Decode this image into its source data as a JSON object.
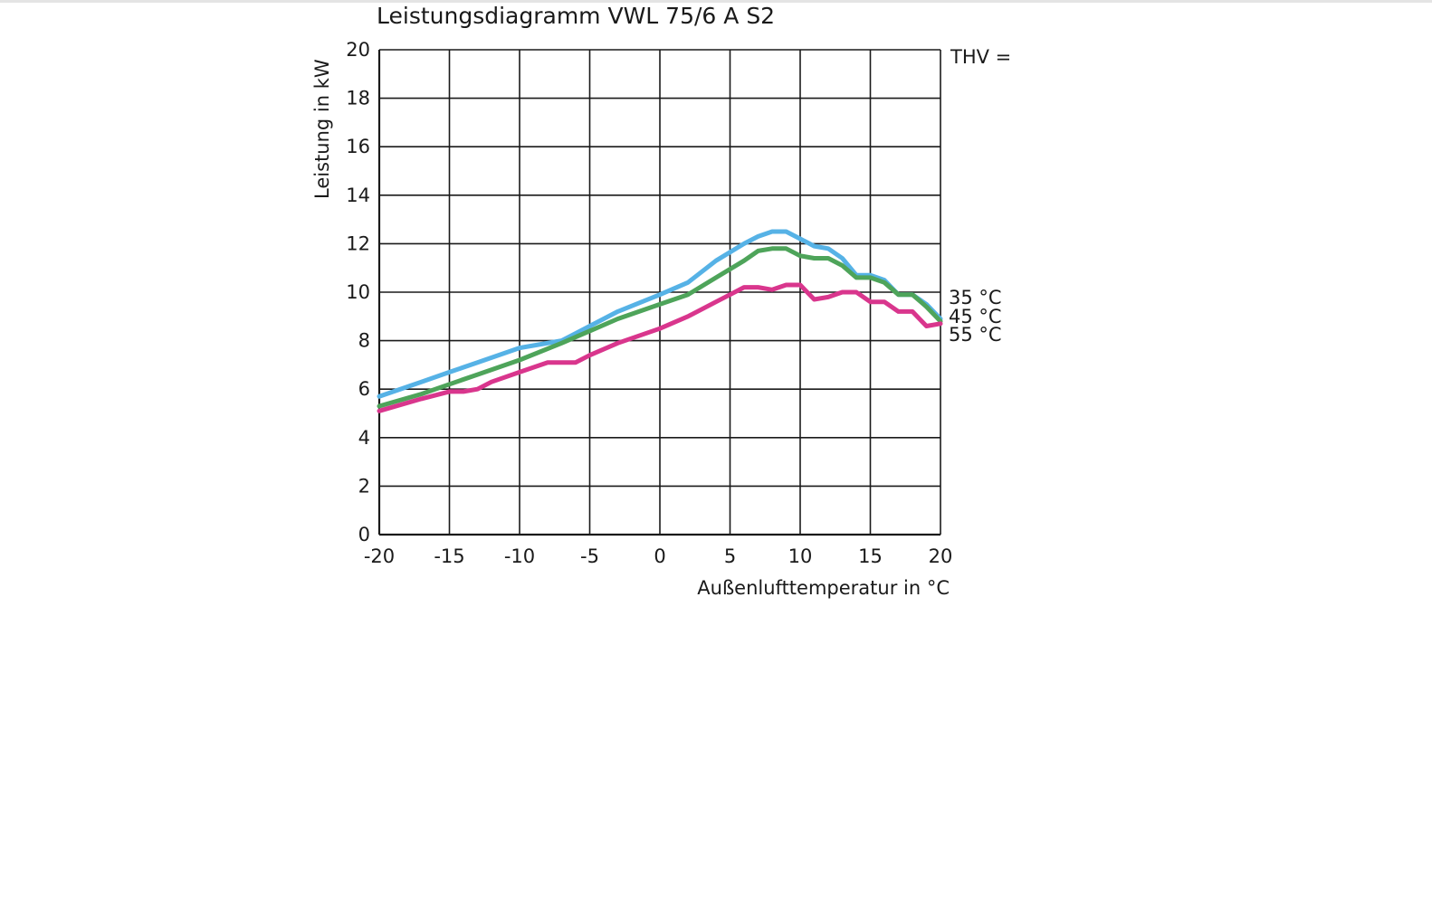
{
  "chart_data": {
    "type": "line",
    "title": "Leistungsdiagramm VWL 75/6 A S2",
    "xlabel": "Außenlufttemperatur  in °C",
    "ylabel": "Leistung in kW",
    "legend_title": "THV =",
    "xlim": [
      -20,
      20
    ],
    "ylim": [
      0,
      20
    ],
    "xticks": [
      -20,
      -15,
      -10,
      -5,
      0,
      5,
      10,
      15,
      20
    ],
    "yticks": [
      0,
      2,
      4,
      6,
      8,
      10,
      12,
      14,
      16,
      18,
      20
    ],
    "grid": true,
    "legend_position": "right",
    "series": [
      {
        "name": "35 °C",
        "color": "#56b2e6",
        "x": [
          -20,
          -17,
          -15,
          -13,
          -10,
          -7,
          -5,
          -3,
          0,
          2,
          4,
          6,
          7,
          8,
          9,
          10,
          11,
          12,
          13,
          14,
          15,
          16,
          17,
          18,
          19,
          20
        ],
        "y": [
          5.7,
          6.3,
          6.7,
          7.1,
          7.7,
          8.0,
          8.6,
          9.2,
          9.9,
          10.4,
          11.3,
          12.0,
          12.3,
          12.5,
          12.5,
          12.2,
          11.9,
          11.8,
          11.4,
          10.7,
          10.7,
          10.5,
          9.9,
          9.9,
          9.5,
          8.9
        ]
      },
      {
        "name": "45 °C",
        "color": "#4ea45a",
        "x": [
          -20,
          -17,
          -15,
          -13,
          -10,
          -7,
          -5,
          -3,
          0,
          2,
          4,
          6,
          7,
          8,
          9,
          10,
          11,
          12,
          13,
          14,
          15,
          16,
          17,
          18,
          19,
          20
        ],
        "y": [
          5.3,
          5.8,
          6.2,
          6.6,
          7.2,
          7.9,
          8.4,
          8.9,
          9.5,
          9.9,
          10.6,
          11.3,
          11.7,
          11.8,
          11.8,
          11.5,
          11.4,
          11.4,
          11.1,
          10.6,
          10.6,
          10.4,
          9.9,
          9.9,
          9.4,
          8.8
        ]
      },
      {
        "name": "55 °C",
        "color": "#d9368d",
        "x": [
          -20,
          -17,
          -15,
          -14,
          -13,
          -12,
          -10,
          -8,
          -6,
          -5,
          -3,
          0,
          2,
          4,
          5,
          6,
          7,
          8,
          9,
          10,
          11,
          12,
          13,
          14,
          15,
          16,
          17,
          18,
          19,
          20
        ],
        "y": [
          5.1,
          5.6,
          5.9,
          5.9,
          6.0,
          6.3,
          6.7,
          7.1,
          7.1,
          7.4,
          7.9,
          8.5,
          9.0,
          9.6,
          9.9,
          10.2,
          10.2,
          10.1,
          10.3,
          10.3,
          9.7,
          9.8,
          10.0,
          10.0,
          9.6,
          9.6,
          9.2,
          9.2,
          8.6,
          8.7
        ]
      }
    ]
  }
}
